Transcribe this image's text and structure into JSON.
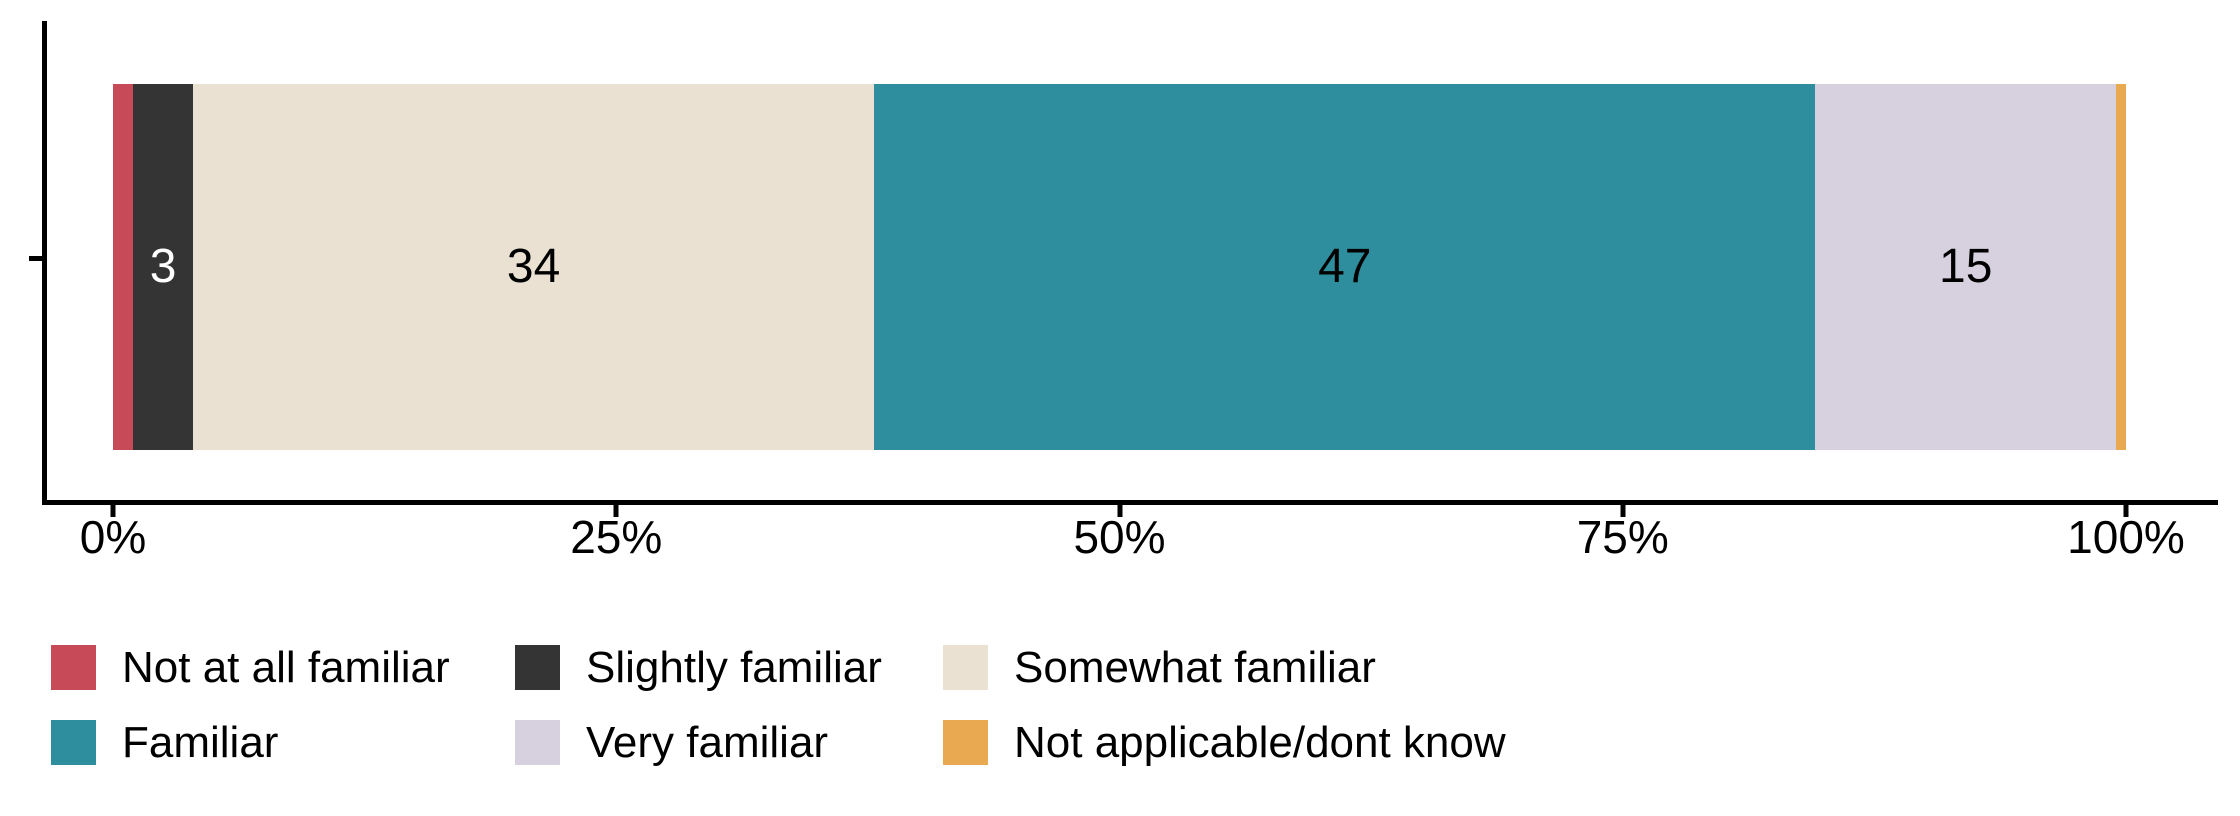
{
  "chart_data": {
    "type": "bar",
    "orientation": "horizontal",
    "stacked": true,
    "title": "",
    "xlabel": "",
    "ylabel": "",
    "categories": [
      ""
    ],
    "x_axis": {
      "range": [
        0,
        100
      ],
      "tick_values": [
        0,
        25,
        50,
        75,
        100
      ],
      "tick_labels": [
        "0%",
        "25%",
        "50%",
        "75%",
        "100%"
      ]
    },
    "grid": "off",
    "legend_position": "bottom",
    "series": [
      {
        "name": "Not at all familiar",
        "value": 1,
        "label": "",
        "color": "#C74A58",
        "label_color": "#FFFFFF"
      },
      {
        "name": "Slightly familiar",
        "value": 3,
        "label": "3",
        "color": "#343434",
        "label_color": "#FFFFFF"
      },
      {
        "name": "Somewhat familiar",
        "value": 34,
        "label": "34",
        "color": "#EAE1D2",
        "label_color": "#000000"
      },
      {
        "name": "Familiar",
        "value": 47,
        "label": "47",
        "color": "#2E8E9E",
        "label_color": "#000000"
      },
      {
        "name": "Very familiar",
        "value": 15,
        "label": "15",
        "color": "#D7D1DF",
        "label_color": "#000000"
      },
      {
        "name": "Not applicable/dont know",
        "value": 0.5,
        "label": "",
        "color": "#E9A950",
        "label_color": "#000000"
      }
    ]
  },
  "legend": {
    "items": [
      {
        "label": "Not at all familiar",
        "color": "#C74A58"
      },
      {
        "label": "Slightly familiar",
        "color": "#343434"
      },
      {
        "label": "Somewhat familiar",
        "color": "#EAE1D2"
      },
      {
        "label": "Familiar",
        "color": "#2E8E9E"
      },
      {
        "label": "Very familiar",
        "color": "#D7D1DF"
      },
      {
        "label": "Not applicable/dont know",
        "color": "#E9A950"
      }
    ]
  },
  "axis_color": "#000000"
}
